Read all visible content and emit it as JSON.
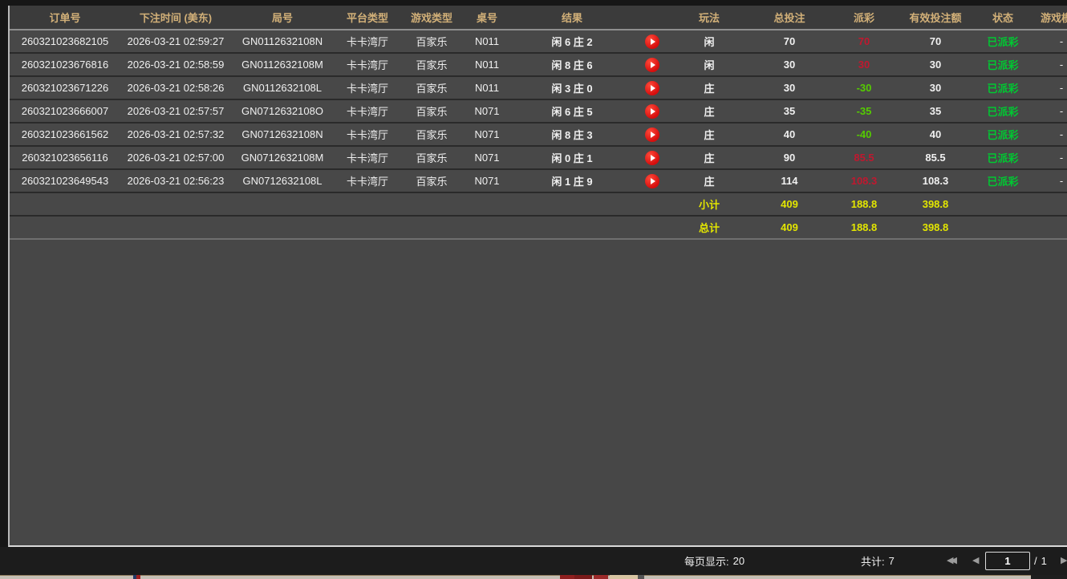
{
  "table": {
    "columns": [
      {
        "key": "order_no",
        "label": "订单号"
      },
      {
        "key": "bet_time",
        "label": "下注时间 (美东)"
      },
      {
        "key": "round_no",
        "label": "局号"
      },
      {
        "key": "platform",
        "label": "平台类型"
      },
      {
        "key": "game_type",
        "label": "游戏类型"
      },
      {
        "key": "table_no",
        "label": "桌号"
      },
      {
        "key": "result",
        "label": "结果"
      },
      {
        "key": "video",
        "label": ""
      },
      {
        "key": "play",
        "label": "玩法"
      },
      {
        "key": "total_bet",
        "label": "总投注"
      },
      {
        "key": "payout",
        "label": "派彩"
      },
      {
        "key": "valid_bet",
        "label": "有效投注额"
      },
      {
        "key": "status",
        "label": "状态"
      },
      {
        "key": "game_mode",
        "label": "游戏模式"
      }
    ],
    "rows": [
      {
        "order_no": "260321023682105",
        "bet_time": "2026-03-21 02:59:27",
        "round_no": "GN0112632108N",
        "platform": "卡卡湾厅",
        "game_type": "百家乐",
        "table_no": "N011",
        "result": "闲 6 庄 2",
        "play": "闲",
        "total_bet": "70",
        "payout": "70",
        "valid_bet": "70",
        "status": "已派彩",
        "game_mode": "-"
      },
      {
        "order_no": "260321023676816",
        "bet_time": "2026-03-21 02:58:59",
        "round_no": "GN0112632108M",
        "platform": "卡卡湾厅",
        "game_type": "百家乐",
        "table_no": "N011",
        "result": "闲 8 庄 6",
        "play": "闲",
        "total_bet": "30",
        "payout": "30",
        "valid_bet": "30",
        "status": "已派彩",
        "game_mode": "-"
      },
      {
        "order_no": "260321023671226",
        "bet_time": "2026-03-21 02:58:26",
        "round_no": "GN0112632108L",
        "platform": "卡卡湾厅",
        "game_type": "百家乐",
        "table_no": "N011",
        "result": "闲 3 庄 0",
        "play": "庄",
        "total_bet": "30",
        "payout": "-30",
        "valid_bet": "30",
        "status": "已派彩",
        "game_mode": "-"
      },
      {
        "order_no": "260321023666007",
        "bet_time": "2026-03-21 02:57:57",
        "round_no": "GN0712632108O",
        "platform": "卡卡湾厅",
        "game_type": "百家乐",
        "table_no": "N071",
        "result": "闲 6 庄 5",
        "play": "庄",
        "total_bet": "35",
        "payout": "-35",
        "valid_bet": "35",
        "status": "已派彩",
        "game_mode": "-"
      },
      {
        "order_no": "260321023661562",
        "bet_time": "2026-03-21 02:57:32",
        "round_no": "GN0712632108N",
        "platform": "卡卡湾厅",
        "game_type": "百家乐",
        "table_no": "N071",
        "result": "闲 8 庄 3",
        "play": "庄",
        "total_bet": "40",
        "payout": "-40",
        "valid_bet": "40",
        "status": "已派彩",
        "game_mode": "-"
      },
      {
        "order_no": "260321023656116",
        "bet_time": "2026-03-21 02:57:00",
        "round_no": "GN0712632108M",
        "platform": "卡卡湾厅",
        "game_type": "百家乐",
        "table_no": "N071",
        "result": "闲 0 庄 1",
        "play": "庄",
        "total_bet": "90",
        "payout": "85.5",
        "valid_bet": "85.5",
        "status": "已派彩",
        "game_mode": "-"
      },
      {
        "order_no": "260321023649543",
        "bet_time": "2026-03-21 02:56:23",
        "round_no": "GN0712632108L",
        "platform": "卡卡湾厅",
        "game_type": "百家乐",
        "table_no": "N071",
        "result": "闲 1 庄 9",
        "play": "庄",
        "total_bet": "114",
        "payout": "108.3",
        "valid_bet": "108.3",
        "status": "已派彩",
        "game_mode": "-"
      }
    ],
    "subtotal": {
      "label": "小计",
      "total_bet": "409",
      "payout": "188.8",
      "valid_bet": "398.8"
    },
    "total": {
      "label": "总计",
      "total_bet": "409",
      "payout": "188.8",
      "valid_bet": "398.8"
    }
  },
  "pagination": {
    "per_page_label": "每页显示:",
    "per_page_value": "20",
    "total_label": "共计:",
    "total_value": "7",
    "current_page": "1",
    "separator": "/",
    "total_pages": "1"
  },
  "icons": {
    "video_play": "play-circle ▶",
    "first_page": "◀◀",
    "prev_page": "◀",
    "next_page": "▶"
  },
  "colors": {
    "header_gold": "#d2b078",
    "payout_positive": "#c0182f",
    "payout_negative": "#55cc00",
    "status_paid_green": "#00c832",
    "summary_yellow": "#e3e600",
    "play_button_red": "#d60d0d",
    "row_background": "#484848",
    "bottom_bar_background": "#1c1c1c"
  }
}
